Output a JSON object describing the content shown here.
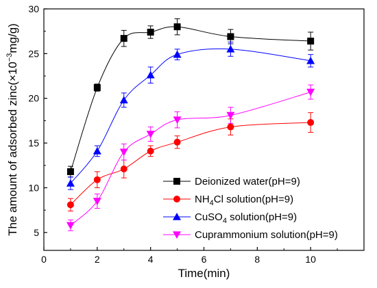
{
  "chart_data": {
    "type": "line",
    "xlabel": "Time(min)",
    "ylabel_parts": {
      "pre": "The amount of adsorbed zinc(×10",
      "exp": "−3",
      "post": "mg/g)"
    },
    "xlim": [
      0,
      12
    ],
    "ylim": [
      3,
      30
    ],
    "x_ticks": [
      0,
      2,
      4,
      6,
      8,
      10
    ],
    "y_ticks": [
      5,
      10,
      15,
      20,
      25,
      30
    ],
    "legend_position": "bottom-right",
    "series": [
      {
        "name_parts": [
          "Deionized water(pH=9)"
        ],
        "marker": "square",
        "color": "#000000",
        "x": [
          1,
          2,
          3,
          4,
          5,
          7,
          10
        ],
        "y": [
          11.8,
          21.2,
          26.7,
          27.4,
          28.0,
          26.9,
          26.4
        ],
        "err": [
          0.6,
          0.4,
          0.9,
          0.7,
          0.9,
          0.8,
          1.0
        ]
      },
      {
        "name_parts": [
          "NH",
          "4",
          "Cl solution(pH=9)"
        ],
        "marker": "circle",
        "color": "#ff0000",
        "x": [
          1,
          2,
          3,
          4,
          5,
          7,
          10
        ],
        "y": [
          8.1,
          10.9,
          12.1,
          14.1,
          15.1,
          16.8,
          17.3
        ],
        "err": [
          0.7,
          0.9,
          1.0,
          0.6,
          0.7,
          0.9,
          1.1
        ]
      },
      {
        "name_parts": [
          "CuSO",
          "4",
          " solution(pH=9)"
        ],
        "marker": "triangle-up",
        "color": "#0000ff",
        "x": [
          1,
          2,
          3,
          4,
          5,
          7,
          10
        ],
        "y": [
          10.5,
          14.1,
          19.8,
          22.6,
          24.9,
          25.5,
          24.2
        ],
        "err": [
          0.7,
          0.6,
          0.8,
          0.9,
          0.6,
          0.8,
          0.7
        ]
      },
      {
        "name_parts": [
          "Cuprammonium solution(pH=9)"
        ],
        "marker": "triangle-down",
        "color": "#ff00ff",
        "x": [
          1,
          2,
          3,
          4,
          5,
          7,
          10
        ],
        "y": [
          5.8,
          8.5,
          14.0,
          16.0,
          17.6,
          18.1,
          20.7
        ],
        "err": [
          0.6,
          0.8,
          0.9,
          0.8,
          0.9,
          0.9,
          0.8
        ]
      }
    ]
  }
}
